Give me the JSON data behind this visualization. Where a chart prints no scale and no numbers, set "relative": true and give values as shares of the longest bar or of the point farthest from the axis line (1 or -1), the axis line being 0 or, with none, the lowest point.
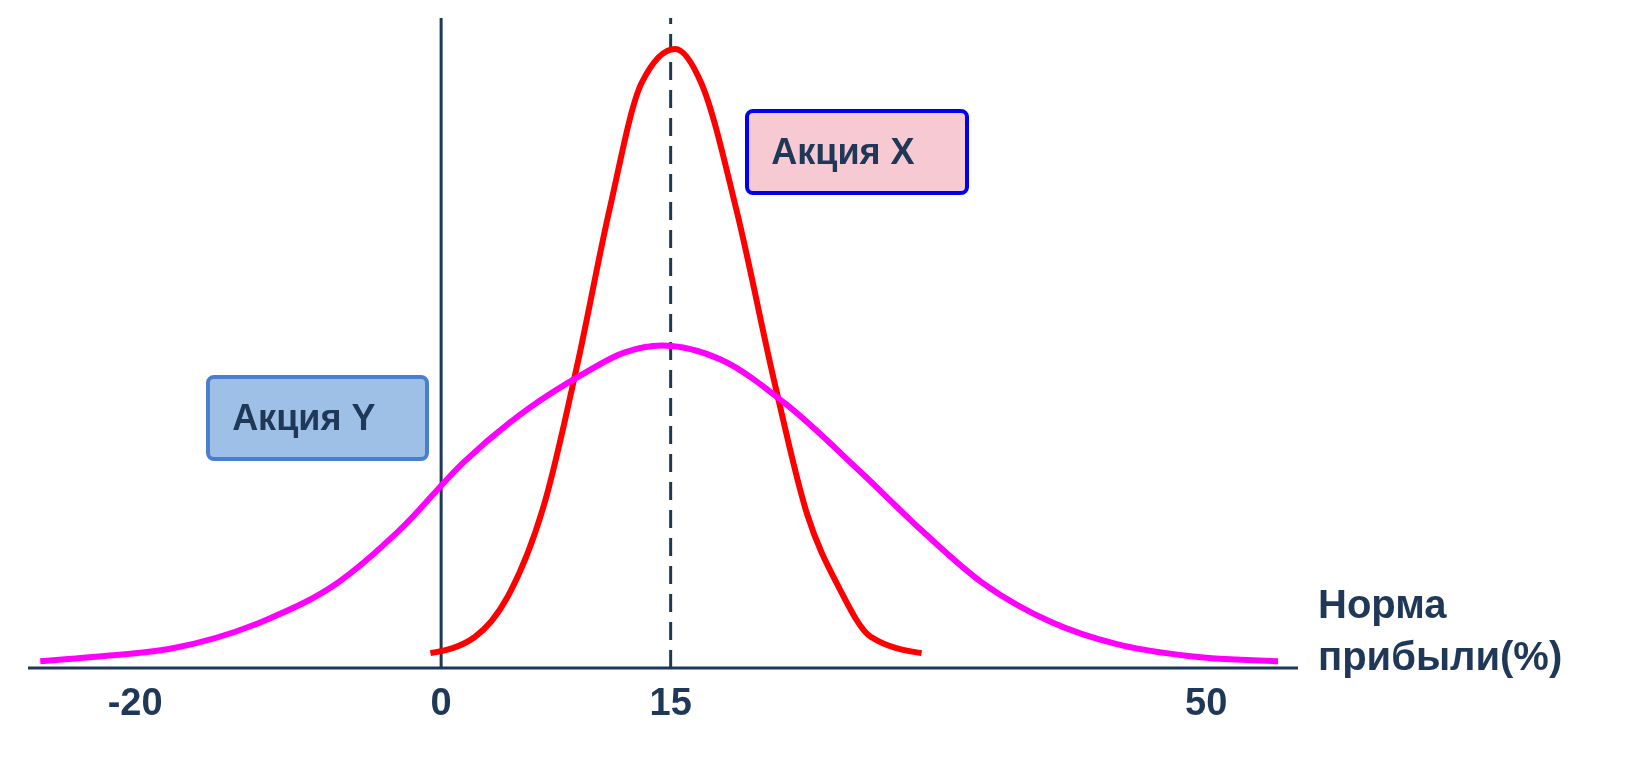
{
  "chart_data": {
    "type": "line",
    "relative": true,
    "xlabel": "Норма прибыли(%)",
    "xlim": [
      -27,
      56
    ],
    "xticks": [
      -20,
      0,
      15,
      50
    ],
    "tick_labels": "x",
    "grid": false,
    "legend": false,
    "marker": "none",
    "line_style": "solid",
    "series": [
      {
        "name": "Акция X",
        "color": "#ff0000",
        "x": [
          -0.7,
          2.2,
          4.3,
          6.8,
          8.9,
          11,
          13.1,
          15.3,
          17,
          19.3,
          21.8,
          23.9,
          26,
          28.1,
          31.4
        ],
        "values": [
          0.024,
          0.05,
          0.113,
          0.27,
          0.49,
          0.74,
          0.945,
          1,
          0.945,
          0.74,
          0.46,
          0.25,
          0.13,
          0.05,
          0.024
        ]
      },
      {
        "name": "Акция Y",
        "color": "#ff00ff",
        "x": [
          -26.2,
          -22.2,
          -17.7,
          -11.4,
          -6.8,
          -2.7,
          1.5,
          5.7,
          9.2,
          12,
          14.4,
          18.3,
          22.5,
          27.4,
          31.5,
          35.4,
          39.9,
          44.1,
          49,
          54.7
        ],
        "values": [
          0.011,
          0.019,
          0.031,
          0.078,
          0.137,
          0.223,
          0.333,
          0.419,
          0.474,
          0.51,
          0.521,
          0.498,
          0.427,
          0.317,
          0.22,
          0.137,
          0.074,
          0.039,
          0.019,
          0.011
        ]
      }
    ],
    "ref_lines": [
      {
        "axis": "x",
        "value": 0,
        "color": "#1f3858",
        "line_style": "solid"
      },
      {
        "axis": "x",
        "value": 15,
        "color": "#1f3858",
        "line_style": "dashed"
      }
    ]
  }
}
